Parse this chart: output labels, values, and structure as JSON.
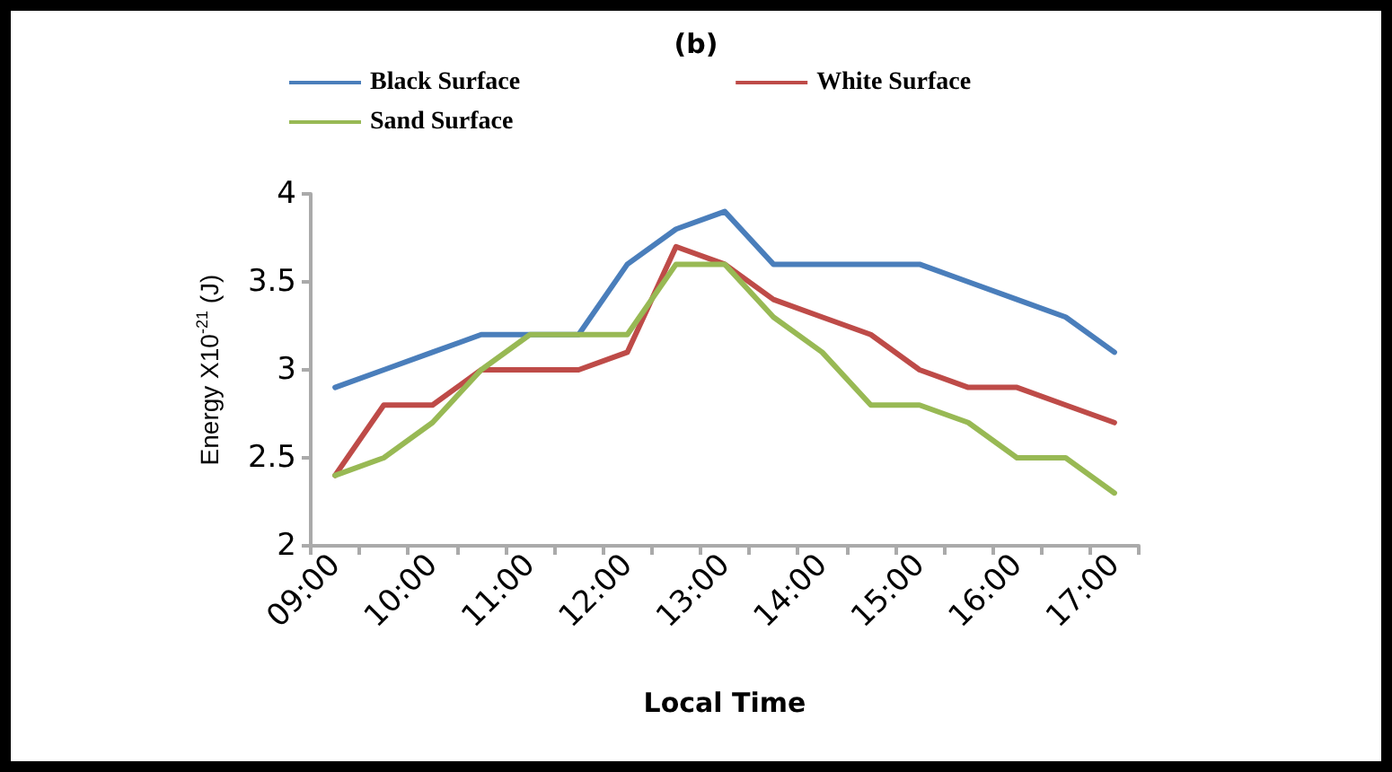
{
  "chart_data": {
    "type": "line",
    "title": "(b)",
    "xlabel": "Local Time",
    "ylabel": "Energy X10$^{-21}$ (J)",
    "categories": [
      "09:00",
      null,
      "10:00",
      null,
      "11:00",
      null,
      "12:00",
      null,
      "13:00",
      null,
      "14:00",
      null,
      "15:00",
      null,
      "16:00",
      null,
      "17:00"
    ],
    "series": [
      {
        "name": "Black Surface",
        "color": "#4a7ebb",
        "values": [
          2.9,
          3.0,
          3.1,
          3.2,
          3.2,
          3.2,
          3.6,
          3.8,
          3.9,
          3.6,
          3.6,
          3.6,
          3.6,
          3.5,
          3.4,
          3.3,
          3.1
        ]
      },
      {
        "name": "White Surface",
        "color": "#be4b48",
        "values": [
          2.4,
          2.8,
          2.8,
          3.0,
          3.0,
          3.0,
          3.1,
          3.7,
          3.6,
          3.4,
          3.3,
          3.2,
          3.0,
          2.9,
          2.9,
          2.8,
          2.7
        ]
      },
      {
        "name": "Sand Surface",
        "color": "#98b954",
        "values": [
          2.4,
          2.5,
          2.7,
          3.0,
          3.2,
          3.2,
          3.2,
          3.6,
          3.6,
          3.3,
          3.1,
          2.8,
          2.8,
          2.7,
          2.5,
          2.5,
          2.3
        ]
      }
    ],
    "ylim": [
      2,
      4
    ],
    "yticks": [
      2,
      2.5,
      3,
      3.5,
      4
    ],
    "grid": false,
    "legend": "top",
    "marker": "none",
    "line_style": "solid"
  }
}
